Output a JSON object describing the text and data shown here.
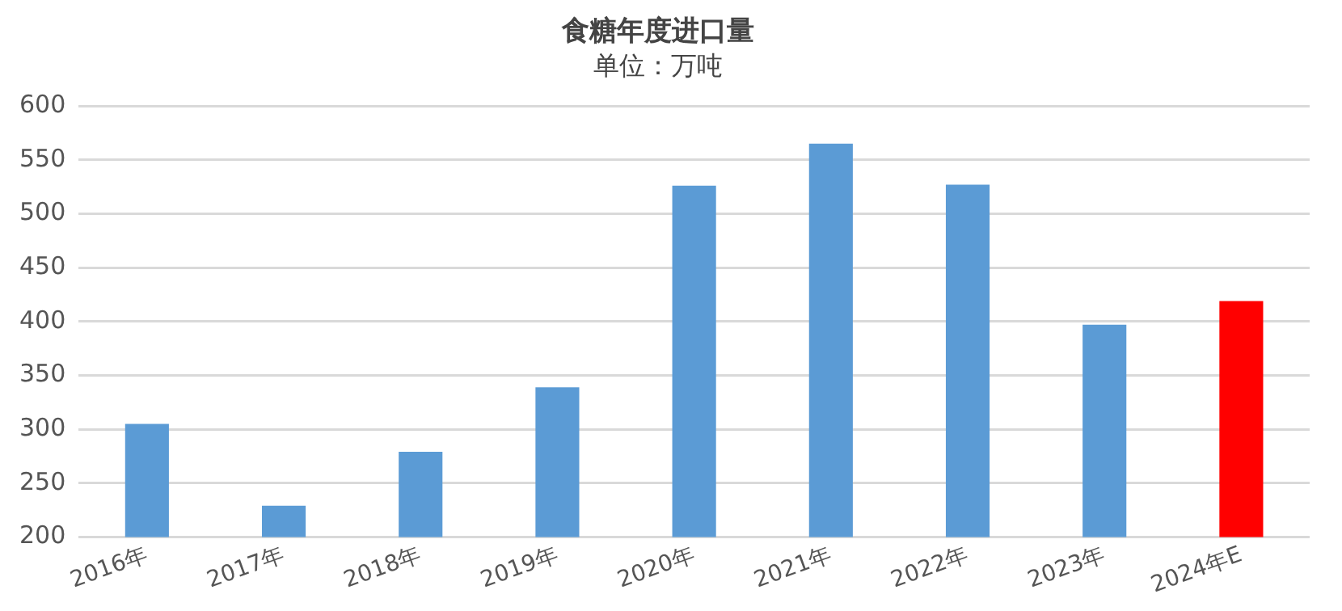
{
  "chart_data": {
    "type": "bar",
    "title": "食糖年度进口量",
    "subtitle": "单位：万吨",
    "categories": [
      "2016年",
      "2017年",
      "2018年",
      "2019年",
      "2020年",
      "2021年",
      "2022年",
      "2023年",
      "2024年E"
    ],
    "values": [
      305,
      229,
      279,
      339,
      526,
      565,
      527,
      397,
      419
    ],
    "colors": [
      "#5b9bd5",
      "#5b9bd5",
      "#5b9bd5",
      "#5b9bd5",
      "#5b9bd5",
      "#5b9bd5",
      "#5b9bd5",
      "#5b9bd5",
      "#ff0000"
    ],
    "ylim": [
      200,
      600
    ],
    "yticks": [
      200,
      250,
      300,
      350,
      400,
      450,
      500,
      550,
      600
    ],
    "grid": "y",
    "legend": false
  }
}
